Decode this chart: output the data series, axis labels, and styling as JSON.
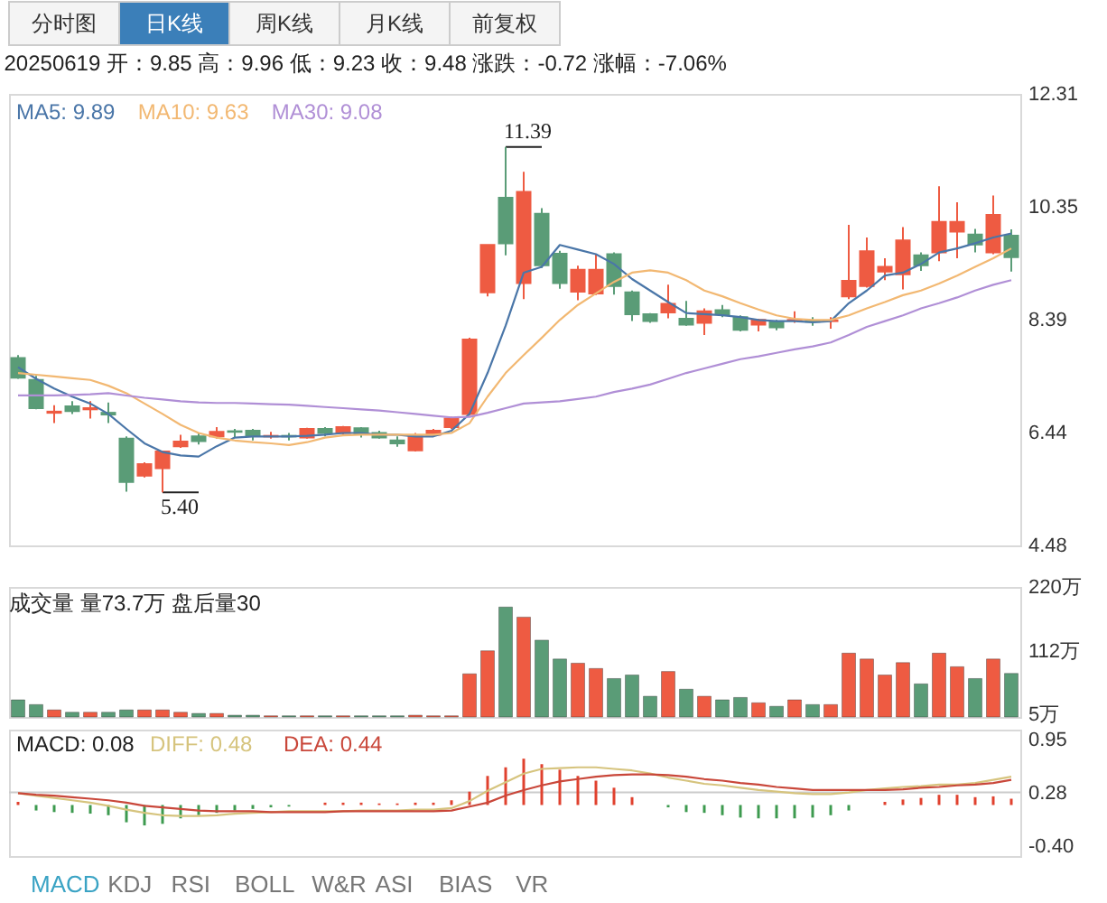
{
  "chart_data": [
    {
      "type": "other",
      "annotations": [
        "分时图",
        "日K线",
        "周K线",
        "月K线",
        "前复权"
      ],
      "colors": [
        "#f4f4f4",
        "#3b7fb9",
        "#f4f4f4",
        "#f4f4f4",
        "#f4f4f4"
      ]
    },
    {
      "type": "candlestick",
      "title": "20250619 开：9.85 高：9.96 低：9.23 收：9.48 涨跌：-0.72 涨幅：-7.06%",
      "categories": [
        null,
        null,
        null,
        null,
        null,
        null,
        null,
        null,
        null,
        null,
        null,
        null,
        null,
        null,
        null,
        null,
        null,
        null,
        null,
        null,
        null,
        null,
        null,
        null,
        null,
        null,
        null,
        null,
        null,
        null,
        null,
        null,
        null,
        null,
        null,
        null,
        null,
        null,
        null,
        null,
        null,
        null,
        null,
        null,
        null,
        null,
        null,
        null,
        null,
        null,
        null,
        null,
        null,
        null,
        null,
        null
      ],
      "ohlc": [
        [
          7.73,
          7.78,
          7.37,
          7.39
        ],
        [
          7.35,
          7.42,
          6.84,
          6.86
        ],
        [
          6.78,
          6.91,
          6.6,
          6.8
        ],
        [
          6.89,
          6.98,
          6.76,
          6.81
        ],
        [
          6.84,
          6.98,
          6.68,
          6.86
        ],
        [
          6.78,
          6.96,
          6.6,
          6.75
        ],
        [
          6.33,
          6.37,
          5.41,
          5.58
        ],
        [
          5.69,
          5.92,
          5.66,
          5.89
        ],
        [
          5.82,
          6.11,
          5.4,
          6.11
        ],
        [
          6.2,
          6.4,
          6.17,
          6.28
        ],
        [
          6.37,
          6.43,
          6.23,
          6.29
        ],
        [
          6.37,
          6.53,
          6.33,
          6.45
        ],
        [
          6.46,
          6.5,
          6.35,
          6.45
        ],
        [
          6.47,
          6.5,
          6.3,
          6.39
        ],
        [
          6.37,
          6.45,
          6.33,
          6.38
        ],
        [
          6.38,
          6.43,
          6.3,
          6.37
        ],
        [
          6.35,
          6.52,
          6.33,
          6.5
        ],
        [
          6.5,
          6.53,
          6.37,
          6.43
        ],
        [
          6.43,
          6.55,
          6.4,
          6.53
        ],
        [
          6.51,
          6.53,
          6.35,
          6.42
        ],
        [
          6.43,
          6.47,
          6.33,
          6.35
        ],
        [
          6.3,
          6.37,
          6.19,
          6.25
        ],
        [
          6.13,
          6.43,
          6.11,
          6.37
        ],
        [
          6.4,
          6.5,
          6.37,
          6.47
        ],
        [
          6.53,
          6.71,
          6.5,
          6.68
        ],
        [
          6.76,
          8.08,
          6.73,
          8.05
        ],
        [
          8.87,
          9.69,
          8.8,
          9.69
        ],
        [
          10.51,
          11.39,
          9.51,
          9.72
        ],
        [
          9.03,
          10.96,
          8.75,
          10.61
        ],
        [
          10.23,
          10.33,
          9.29,
          9.34
        ],
        [
          9.54,
          9.59,
          8.93,
          9.03
        ],
        [
          8.88,
          9.33,
          8.73,
          9.26
        ],
        [
          8.85,
          9.53,
          8.82,
          9.26
        ],
        [
          9.53,
          9.56,
          8.83,
          8.98
        ],
        [
          8.87,
          8.9,
          8.37,
          8.49
        ],
        [
          8.49,
          8.51,
          8.34,
          8.37
        ],
        [
          8.52,
          9.0,
          8.42,
          8.67
        ],
        [
          8.41,
          8.72,
          8.29,
          8.31
        ],
        [
          8.34,
          8.59,
          8.13,
          8.54
        ],
        [
          8.56,
          8.65,
          8.44,
          8.49
        ],
        [
          8.44,
          8.47,
          8.19,
          8.22
        ],
        [
          8.31,
          8.41,
          8.19,
          8.39
        ],
        [
          8.36,
          8.39,
          8.21,
          8.26
        ],
        [
          8.38,
          8.54,
          8.34,
          8.39
        ],
        [
          8.37,
          8.44,
          8.29,
          8.36
        ],
        [
          8.37,
          8.44,
          8.24,
          8.38
        ],
        [
          8.8,
          10.04,
          8.75,
          9.07
        ],
        [
          8.98,
          9.82,
          8.95,
          9.58
        ],
        [
          9.23,
          9.46,
          9.08,
          9.31
        ],
        [
          9.18,
          10.0,
          8.92,
          9.77
        ],
        [
          9.51,
          9.56,
          9.24,
          9.34
        ],
        [
          9.56,
          10.71,
          9.41,
          10.09
        ],
        [
          9.92,
          10.43,
          9.46,
          10.09
        ],
        [
          9.87,
          9.97,
          9.56,
          9.7
        ],
        [
          9.56,
          10.55,
          9.53,
          10.21
        ],
        [
          9.85,
          9.96,
          9.23,
          9.48
        ]
      ],
      "colors": [
        "#5a9c77",
        "#5a9c77",
        "#ee5b42",
        "#5a9c77",
        "#ee5b42",
        "#5a9c77",
        "#5a9c77",
        "#ee5b42",
        "#ee5b42",
        "#ee5b42",
        "#5a9c77",
        "#ee5b42",
        "#5a9c77",
        "#5a9c77",
        "#ee5b42",
        "#5a9c77",
        "#ee5b42",
        "#5a9c77",
        "#ee5b42",
        "#5a9c77",
        "#5a9c77",
        "#5a9c77",
        "#ee5b42",
        "#ee5b42",
        "#ee5b42",
        "#ee5b42",
        "#ee5b42",
        "#5a9c77",
        "#ee5b42",
        "#5a9c77",
        "#5a9c77",
        "#ee5b42",
        "#ee5b42",
        "#5a9c77",
        "#5a9c77",
        "#5a9c77",
        "#ee5b42",
        "#5a9c77",
        "#ee5b42",
        "#5a9c77",
        "#5a9c77",
        "#ee5b42",
        "#5a9c77",
        "#ee5b42",
        "#5a9c77",
        "#ee5b42",
        "#ee5b42",
        "#ee5b42",
        "#ee5b42",
        "#ee5b42",
        "#5a9c77",
        "#ee5b42",
        "#ee5b42",
        "#5a9c77",
        "#ee5b42",
        "#5a9c77"
      ],
      "series": [
        {
          "name": "MA5: 9.89",
          "type": "line",
          "color": "#4a76a8",
          "values": [
            7.57,
            7.37,
            7.2,
            7.06,
            6.94,
            6.76,
            6.5,
            6.25,
            6.1,
            6.04,
            6.02,
            6.2,
            6.35,
            6.37,
            6.37,
            6.37,
            6.38,
            6.4,
            6.43,
            6.43,
            6.4,
            6.4,
            6.37,
            6.37,
            6.47,
            6.76,
            7.47,
            8.29,
            9.21,
            9.31,
            9.69,
            9.61,
            9.53,
            9.36,
            9.1,
            8.9,
            8.7,
            8.51,
            8.49,
            8.47,
            8.44,
            8.39,
            8.37,
            8.37,
            8.35,
            8.37,
            8.68,
            8.9,
            9.16,
            9.21,
            9.36,
            9.56,
            9.63,
            9.72,
            9.82,
            9.89
          ]
        },
        {
          "name": "MA10: 9.63",
          "type": "line",
          "color": "#f2b872",
          "values": [
            7.47,
            7.44,
            7.41,
            7.38,
            7.35,
            7.25,
            7.12,
            6.94,
            6.76,
            6.57,
            6.43,
            6.35,
            6.3,
            6.27,
            6.25,
            6.22,
            6.27,
            6.35,
            6.39,
            6.4,
            6.4,
            6.4,
            6.4,
            6.4,
            6.43,
            6.6,
            7.06,
            7.47,
            7.78,
            8.08,
            8.39,
            8.65,
            8.85,
            9.05,
            9.21,
            9.25,
            9.21,
            9.08,
            8.9,
            8.8,
            8.68,
            8.57,
            8.47,
            8.41,
            8.39,
            8.39,
            8.47,
            8.59,
            8.7,
            8.82,
            8.9,
            9.02,
            9.16,
            9.31,
            9.46,
            9.63
          ]
        },
        {
          "name": "MA30: 9.08",
          "type": "line",
          "color": "#b08fd6",
          "values": [
            7.08,
            7.08,
            7.08,
            7.09,
            7.1,
            7.12,
            7.08,
            7.04,
            7.01,
            6.98,
            6.96,
            6.95,
            6.95,
            6.94,
            6.93,
            6.92,
            6.9,
            6.88,
            6.86,
            6.84,
            6.82,
            6.79,
            6.76,
            6.73,
            6.7,
            6.71,
            6.78,
            6.86,
            6.94,
            6.96,
            6.98,
            7.02,
            7.06,
            7.14,
            7.2,
            7.27,
            7.37,
            7.47,
            7.55,
            7.63,
            7.71,
            7.76,
            7.82,
            7.88,
            7.93,
            8.0,
            8.13,
            8.27,
            8.37,
            8.47,
            8.59,
            8.68,
            8.78,
            8.9,
            9.0,
            9.08
          ]
        }
      ],
      "ylim": [
        4.48,
        12.31
      ],
      "yticks": [
        12.31,
        10.35,
        8.39,
        6.44,
        4.48
      ],
      "annotations": [
        "11.39",
        "5.40"
      ],
      "legend": "top left",
      "tick_labels": "y"
    },
    {
      "type": "bar",
      "title": "成交量 量73.7万 盘后量30",
      "categories": [
        null,
        null,
        null,
        null,
        null,
        null,
        null,
        null,
        null,
        null,
        null,
        null,
        null,
        null,
        null,
        null,
        null,
        null,
        null,
        null,
        null,
        null,
        null,
        null,
        null,
        null,
        null,
        null,
        null,
        null,
        null,
        null,
        null,
        null,
        null,
        null,
        null,
        null,
        null,
        null,
        null,
        null,
        null,
        null,
        null,
        null,
        null,
        null,
        null,
        null,
        null,
        null,
        null,
        null,
        null,
        null
      ],
      "values": [
        29,
        21,
        12,
        8,
        8,
        8,
        12,
        12,
        12,
        8,
        6,
        6,
        3,
        3,
        2,
        2,
        2,
        2,
        2,
        2,
        2,
        2,
        3,
        2,
        2,
        73,
        112,
        186,
        169,
        130,
        98,
        91,
        82,
        65,
        71,
        35,
        77,
        47,
        35,
        29,
        33,
        24,
        18,
        29,
        21,
        21,
        108,
        98,
        71,
        92,
        56,
        108,
        85,
        65,
        98,
        73.7
      ],
      "colors": [
        "#5a9c77",
        "#5a9c77",
        "#ee5b42",
        "#5a9c77",
        "#ee5b42",
        "#5a9c77",
        "#5a9c77",
        "#ee5b42",
        "#ee5b42",
        "#ee5b42",
        "#5a9c77",
        "#ee5b42",
        "#5a9c77",
        "#5a9c77",
        "#ee5b42",
        "#5a9c77",
        "#ee5b42",
        "#5a9c77",
        "#ee5b42",
        "#5a9c77",
        "#5a9c77",
        "#5a9c77",
        "#ee5b42",
        "#ee5b42",
        "#ee5b42",
        "#ee5b42",
        "#ee5b42",
        "#5a9c77",
        "#ee5b42",
        "#5a9c77",
        "#5a9c77",
        "#ee5b42",
        "#ee5b42",
        "#5a9c77",
        "#5a9c77",
        "#5a9c77",
        "#ee5b42",
        "#5a9c77",
        "#ee5b42",
        "#5a9c77",
        "#5a9c77",
        "#ee5b42",
        "#5a9c77",
        "#ee5b42",
        "#5a9c77",
        "#ee5b42",
        "#ee5b42",
        "#ee5b42",
        "#ee5b42",
        "#ee5b42",
        "#5a9c77",
        "#ee5b42",
        "#ee5b42",
        "#5a9c77",
        "#ee5b42",
        "#5a9c77"
      ],
      "ylim": [
        0,
        220
      ],
      "yticks": [
        {
          "value": 220,
          "label": "220万"
        },
        {
          "value": 112,
          "label": "112万"
        },
        {
          "value": 5,
          "label": "5万"
        }
      ],
      "tick_labels": "y"
    },
    {
      "type": "line",
      "categories": [
        null,
        null,
        null,
        null,
        null,
        null,
        null,
        null,
        null,
        null,
        null,
        null,
        null,
        null,
        null,
        null,
        null,
        null,
        null,
        null,
        null,
        null,
        null,
        null,
        null,
        null,
        null,
        null,
        null,
        null,
        null,
        null,
        null,
        null,
        null,
        null,
        null,
        null,
        null,
        null,
        null,
        null,
        null,
        null,
        null,
        null,
        null,
        null,
        null,
        null,
        null,
        null,
        null,
        null,
        null,
        null
      ],
      "series": [
        {
          "type": "bar",
          "values": [
            0.04,
            -0.07,
            -0.09,
            -0.1,
            -0.11,
            -0.13,
            -0.22,
            -0.26,
            -0.24,
            -0.17,
            -0.13,
            -0.1,
            -0.07,
            -0.05,
            -0.03,
            -0.02,
            null,
            0.03,
            0.03,
            0.03,
            0.02,
            0.02,
            0.03,
            0.03,
            0.06,
            0.17,
            0.37,
            0.48,
            0.59,
            0.52,
            0.45,
            0.37,
            0.31,
            0.22,
            0.1,
            null,
            -0.03,
            -0.09,
            -0.1,
            -0.13,
            -0.16,
            -0.17,
            -0.17,
            -0.17,
            -0.16,
            -0.13,
            -0.07,
            null,
            0.04,
            0.07,
            0.09,
            0.13,
            0.13,
            0.1,
            0.11,
            0.08
          ],
          "base": [
            0.12,
            0.12,
            0.12,
            0.12,
            0.12,
            0.12,
            0.12,
            0.12,
            0.12,
            0.12,
            0.12,
            0.12,
            0.12,
            0.12,
            0.12,
            0.12,
            null,
            0.12,
            0.12,
            0.12,
            0.12,
            0.12,
            0.12,
            0.12,
            0.12,
            0.12,
            0.12,
            0.12,
            0.12,
            0.12,
            0.12,
            0.12,
            0.12,
            0.12,
            0.12,
            null,
            0.12,
            0.12,
            0.12,
            0.12,
            0.12,
            0.12,
            0.12,
            0.12,
            0.12,
            0.12,
            0.12,
            null,
            0.12,
            0.12,
            0.12,
            0.12,
            0.12,
            0.12,
            0.12,
            0.12
          ],
          "colors": [
            "#e0412e",
            "#3d9a4f",
            "#3d9a4f",
            "#3d9a4f",
            "#3d9a4f",
            "#3d9a4f",
            "#3d9a4f",
            "#3d9a4f",
            "#3d9a4f",
            "#3d9a4f",
            "#3d9a4f",
            "#3d9a4f",
            "#3d9a4f",
            "#3d9a4f",
            "#3d9a4f",
            "#3d9a4f",
            "#e0412e",
            "#e0412e",
            "#e0412e",
            "#e0412e",
            "#e0412e",
            "#e0412e",
            "#e0412e",
            "#e0412e",
            "#e0412e",
            "#e0412e",
            "#e0412e",
            "#e0412e",
            "#e0412e",
            "#e0412e",
            "#e0412e",
            "#e0412e",
            "#e0412e",
            "#e0412e",
            "#e0412e",
            "#e0412e",
            "#3d9a4f",
            "#3d9a4f",
            "#3d9a4f",
            "#3d9a4f",
            "#3d9a4f",
            "#3d9a4f",
            "#3d9a4f",
            "#3d9a4f",
            "#3d9a4f",
            "#3d9a4f",
            "#3d9a4f",
            "#e0412e",
            "#e0412e",
            "#e0412e",
            "#e0412e",
            "#e0412e",
            "#e0412e",
            "#e0412e",
            "#e0412e",
            "#e0412e"
          ]
        },
        {
          "name": "DIFF: 0.48",
          "type": "line",
          "color": "#d6c47e",
          "values": [
            0.27,
            0.24,
            0.21,
            0.18,
            0.15,
            0.11,
            0.06,
            0.02,
            -0.01,
            -0.02,
            -0.02,
            -0.01,
            0.01,
            0.02,
            0.03,
            0.04,
            0.04,
            0.04,
            0.04,
            0.05,
            0.05,
            0.05,
            0.06,
            0.06,
            0.08,
            0.17,
            0.3,
            0.41,
            0.52,
            0.58,
            0.59,
            0.6,
            0.6,
            0.58,
            0.56,
            0.52,
            0.47,
            0.43,
            0.39,
            0.37,
            0.34,
            0.31,
            0.29,
            0.27,
            0.26,
            0.26,
            0.28,
            0.31,
            0.33,
            0.35,
            0.36,
            0.38,
            0.38,
            0.4,
            0.44,
            0.48
          ]
        },
        {
          "name": "DEA: 0.44",
          "type": "line",
          "color": "#c9473a",
          "values": [
            0.27,
            0.25,
            0.24,
            0.22,
            0.2,
            0.18,
            0.15,
            0.11,
            0.09,
            0.07,
            0.05,
            0.04,
            0.04,
            0.04,
            0.03,
            0.03,
            0.03,
            0.03,
            0.04,
            0.04,
            0.04,
            0.04,
            0.04,
            0.04,
            0.05,
            0.1,
            0.15,
            0.24,
            0.31,
            0.37,
            0.42,
            0.45,
            0.48,
            0.5,
            0.51,
            0.51,
            0.5,
            0.48,
            0.45,
            0.43,
            0.4,
            0.38,
            0.35,
            0.33,
            0.31,
            0.31,
            0.31,
            0.31,
            0.31,
            0.32,
            0.34,
            0.35,
            0.37,
            0.38,
            0.4,
            0.44
          ]
        }
      ],
      "ylim": [
        -0.53,
        1.08
      ],
      "yticks": [
        0.95,
        0.28,
        {
          "value": -0.4,
          "label": "-0.40"
        }
      ],
      "ref_lines": [
        {
          "axis": "y",
          "value": 0.28,
          "color": "#cccccc"
        }
      ],
      "annotations": [
        "MACD: 0.08"
      ],
      "legend": "top left",
      "tick_labels": "y"
    },
    {
      "type": "other",
      "annotations": [
        "MACD",
        "KDJ",
        "RSI",
        "BOLL",
        "W&R",
        "ASI",
        "BIAS",
        "VR"
      ],
      "colors": [
        "#3aa3c4",
        "#777777",
        "#777777",
        "#777777",
        "#777777",
        "#777777",
        "#777777",
        "#777777"
      ]
    }
  ]
}
